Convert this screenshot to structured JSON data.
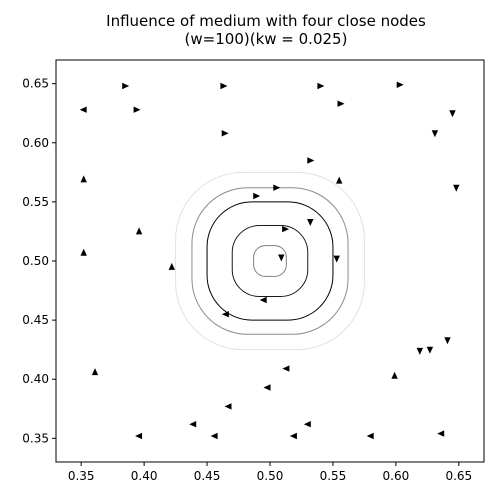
{
  "chart_data": {
    "type": "streamplot",
    "title": "Influence of medium with four close nodes",
    "subtitle": "(w=100)(kw = 0.025)",
    "xlabel": "",
    "ylabel": "",
    "xlim": [
      0.33,
      0.67
    ],
    "ylim": [
      0.33,
      0.67
    ],
    "x_ticks": [
      "0.35",
      "0.40",
      "0.45",
      "0.50",
      "0.55",
      "0.60",
      "0.65"
    ],
    "y_ticks": [
      "0.35",
      "0.40",
      "0.45",
      "0.50",
      "0.55",
      "0.60",
      "0.65"
    ],
    "x_tick_values": [
      0.35,
      0.4,
      0.45,
      0.5,
      0.55,
      0.6,
      0.65
    ],
    "y_tick_values": [
      0.35,
      0.4,
      0.45,
      0.5,
      0.55,
      0.6,
      0.65
    ],
    "grid": false,
    "line_color": "#000000",
    "center": [
      0.5,
      0.5
    ],
    "vortex_curves": [
      {
        "r": 0.013,
        "side": 0.013,
        "alpha": 0.5
      },
      {
        "r": 0.032,
        "side": 0.03,
        "alpha": 0.9
      },
      {
        "r": 0.052,
        "side": 0.05,
        "alpha": 1.0
      },
      {
        "r": 0.066,
        "side": 0.062,
        "alpha": 0.45
      },
      {
        "r": 0.08,
        "side": 0.075,
        "alpha": 0.12
      }
    ],
    "arrows": [
      {
        "x": 0.385,
        "y": 0.648,
        "dir": "right"
      },
      {
        "x": 0.463,
        "y": 0.648,
        "dir": "right"
      },
      {
        "x": 0.54,
        "y": 0.648,
        "dir": "right"
      },
      {
        "x": 0.603,
        "y": 0.649,
        "dir": "right"
      },
      {
        "x": 0.352,
        "y": 0.628,
        "dir": "left"
      },
      {
        "x": 0.394,
        "y": 0.628,
        "dir": "right"
      },
      {
        "x": 0.556,
        "y": 0.633,
        "dir": "right"
      },
      {
        "x": 0.645,
        "y": 0.625,
        "dir": "down"
      },
      {
        "x": 0.464,
        "y": 0.608,
        "dir": "right"
      },
      {
        "x": 0.631,
        "y": 0.608,
        "dir": "down"
      },
      {
        "x": 0.532,
        "y": 0.585,
        "dir": "right"
      },
      {
        "x": 0.352,
        "y": 0.569,
        "dir": "up"
      },
      {
        "x": 0.555,
        "y": 0.568,
        "dir": "up"
      },
      {
        "x": 0.648,
        "y": 0.562,
        "dir": "down"
      },
      {
        "x": 0.505,
        "y": 0.562,
        "dir": "right"
      },
      {
        "x": 0.489,
        "y": 0.555,
        "dir": "right"
      },
      {
        "x": 0.396,
        "y": 0.525,
        "dir": "up"
      },
      {
        "x": 0.512,
        "y": 0.527,
        "dir": "right"
      },
      {
        "x": 0.532,
        "y": 0.533,
        "dir": "down"
      },
      {
        "x": 0.352,
        "y": 0.507,
        "dir": "up"
      },
      {
        "x": 0.422,
        "y": 0.495,
        "dir": "up"
      },
      {
        "x": 0.509,
        "y": 0.503,
        "dir": "down"
      },
      {
        "x": 0.553,
        "y": 0.502,
        "dir": "down"
      },
      {
        "x": 0.495,
        "y": 0.467,
        "dir": "left"
      },
      {
        "x": 0.465,
        "y": 0.455,
        "dir": "left"
      },
      {
        "x": 0.361,
        "y": 0.406,
        "dir": "up"
      },
      {
        "x": 0.513,
        "y": 0.409,
        "dir": "left"
      },
      {
        "x": 0.619,
        "y": 0.424,
        "dir": "down"
      },
      {
        "x": 0.627,
        "y": 0.425,
        "dir": "down"
      },
      {
        "x": 0.641,
        "y": 0.433,
        "dir": "down"
      },
      {
        "x": 0.599,
        "y": 0.403,
        "dir": "up"
      },
      {
        "x": 0.498,
        "y": 0.393,
        "dir": "left"
      },
      {
        "x": 0.467,
        "y": 0.377,
        "dir": "left"
      },
      {
        "x": 0.439,
        "y": 0.362,
        "dir": "left"
      },
      {
        "x": 0.53,
        "y": 0.362,
        "dir": "left"
      },
      {
        "x": 0.396,
        "y": 0.352,
        "dir": "left"
      },
      {
        "x": 0.456,
        "y": 0.352,
        "dir": "left"
      },
      {
        "x": 0.519,
        "y": 0.352,
        "dir": "left"
      },
      {
        "x": 0.58,
        "y": 0.352,
        "dir": "left"
      },
      {
        "x": 0.636,
        "y": 0.354,
        "dir": "left"
      }
    ]
  }
}
